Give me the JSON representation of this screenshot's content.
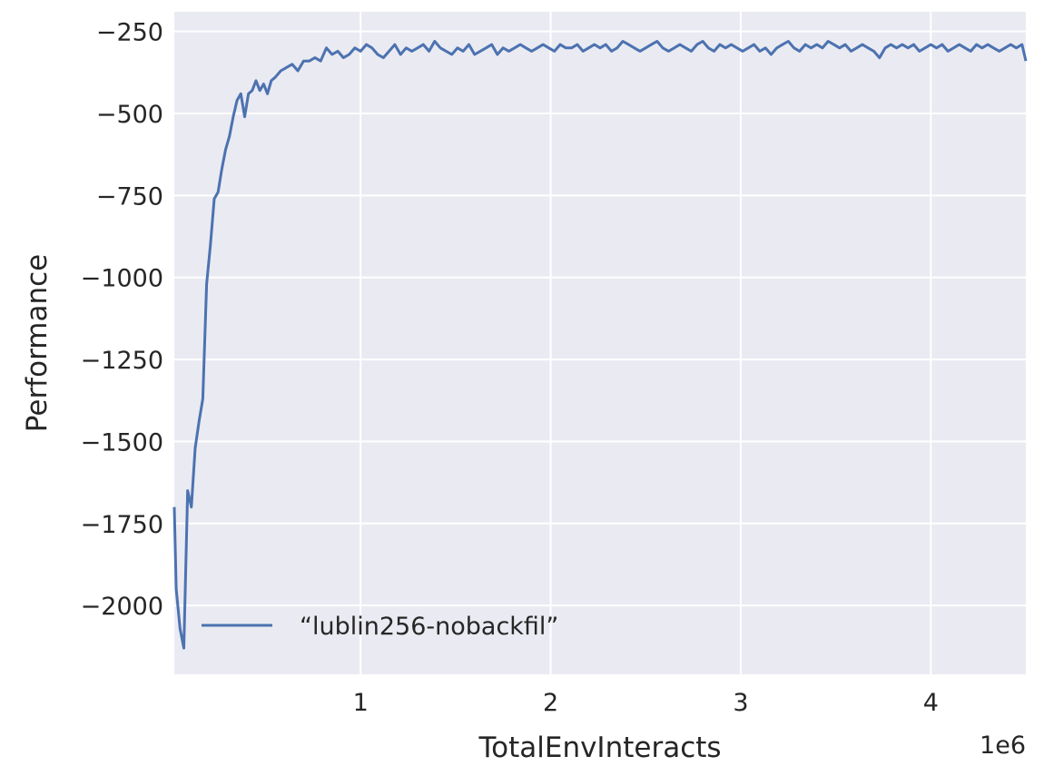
{
  "chart_data": {
    "type": "line",
    "title": "",
    "xlabel": "TotalEnvInteracts",
    "ylabel": "Performance",
    "x_offset_label": "1e6",
    "xlim": [
      0.02,
      4.5
    ],
    "ylim": [
      -2210,
      -190
    ],
    "x_ticks": [
      1,
      2,
      3,
      4
    ],
    "x_tick_labels": [
      "1",
      "2",
      "3",
      "4"
    ],
    "y_ticks": [
      -250,
      -500,
      -750,
      -1000,
      -1250,
      -1500,
      -1750,
      -2000
    ],
    "y_tick_labels": [
      "−250",
      "−500",
      "−750",
      "−1000",
      "−1250",
      "−1500",
      "−1750",
      "−2000"
    ],
    "grid": true,
    "legend_position": "lower-left",
    "colors": {
      "line": "#4c72b0",
      "background": "#eaeaf2",
      "grid": "#ffffff",
      "text": "#262626"
    },
    "series": [
      {
        "name": "“lublin256-nobackfil”",
        "x": [
          0.02,
          0.03,
          0.05,
          0.07,
          0.09,
          0.11,
          0.13,
          0.15,
          0.17,
          0.19,
          0.21,
          0.23,
          0.25,
          0.27,
          0.29,
          0.31,
          0.33,
          0.35,
          0.37,
          0.39,
          0.41,
          0.43,
          0.45,
          0.47,
          0.49,
          0.51,
          0.53,
          0.55,
          0.58,
          0.61,
          0.64,
          0.67,
          0.7,
          0.73,
          0.76,
          0.79,
          0.82,
          0.85,
          0.88,
          0.91,
          0.94,
          0.97,
          1.0,
          1.03,
          1.06,
          1.09,
          1.12,
          1.15,
          1.18,
          1.21,
          1.24,
          1.27,
          1.3,
          1.33,
          1.36,
          1.39,
          1.42,
          1.45,
          1.48,
          1.51,
          1.54,
          1.57,
          1.6,
          1.63,
          1.66,
          1.69,
          1.72,
          1.75,
          1.78,
          1.81,
          1.84,
          1.87,
          1.9,
          1.93,
          1.96,
          1.99,
          2.02,
          2.05,
          2.08,
          2.11,
          2.14,
          2.17,
          2.2,
          2.23,
          2.26,
          2.29,
          2.32,
          2.35,
          2.38,
          2.41,
          2.44,
          2.47,
          2.5,
          2.53,
          2.56,
          2.59,
          2.62,
          2.65,
          2.68,
          2.71,
          2.74,
          2.77,
          2.8,
          2.83,
          2.86,
          2.89,
          2.92,
          2.95,
          2.98,
          3.01,
          3.04,
          3.07,
          3.1,
          3.13,
          3.16,
          3.19,
          3.22,
          3.25,
          3.28,
          3.31,
          3.34,
          3.37,
          3.4,
          3.43,
          3.46,
          3.49,
          3.52,
          3.55,
          3.58,
          3.61,
          3.64,
          3.67,
          3.7,
          3.73,
          3.76,
          3.79,
          3.82,
          3.85,
          3.88,
          3.91,
          3.94,
          3.97,
          4.0,
          4.03,
          4.06,
          4.09,
          4.12,
          4.15,
          4.18,
          4.21,
          4.24,
          4.27,
          4.3,
          4.33,
          4.36,
          4.39,
          4.42,
          4.45,
          4.48,
          4.5
        ],
        "values": [
          -1700,
          -1950,
          -2070,
          -2130,
          -1650,
          -1700,
          -1520,
          -1440,
          -1370,
          -1020,
          -900,
          -760,
          -740,
          -670,
          -610,
          -570,
          -510,
          -460,
          -440,
          -510,
          -440,
          -430,
          -400,
          -430,
          -410,
          -440,
          -400,
          -390,
          -370,
          -360,
          -350,
          -370,
          -340,
          -340,
          -330,
          -340,
          -300,
          -320,
          -310,
          -330,
          -320,
          -300,
          -310,
          -290,
          -300,
          -320,
          -330,
          -310,
          -290,
          -320,
          -300,
          -310,
          -300,
          -290,
          -310,
          -280,
          -300,
          -310,
          -320,
          -300,
          -310,
          -290,
          -320,
          -310,
          -300,
          -290,
          -320,
          -300,
          -310,
          -300,
          -290,
          -300,
          -310,
          -300,
          -290,
          -300,
          -310,
          -290,
          -300,
          -300,
          -290,
          -310,
          -300,
          -290,
          -300,
          -290,
          -310,
          -300,
          -280,
          -290,
          -300,
          -310,
          -300,
          -290,
          -280,
          -300,
          -310,
          -300,
          -290,
          -300,
          -310,
          -290,
          -280,
          -300,
          -310,
          -290,
          -300,
          -290,
          -300,
          -310,
          -300,
          -290,
          -310,
          -300,
          -320,
          -300,
          -290,
          -280,
          -300,
          -310,
          -290,
          -300,
          -290,
          -300,
          -280,
          -290,
          -300,
          -290,
          -310,
          -300,
          -290,
          -300,
          -310,
          -330,
          -300,
          -290,
          -300,
          -290,
          -300,
          -290,
          -310,
          -300,
          -290,
          -300,
          -290,
          -310,
          -300,
          -290,
          -300,
          -310,
          -290,
          -300,
          -290,
          -300,
          -310,
          -300,
          -290,
          -300,
          -290,
          -340
        ]
      }
    ]
  }
}
